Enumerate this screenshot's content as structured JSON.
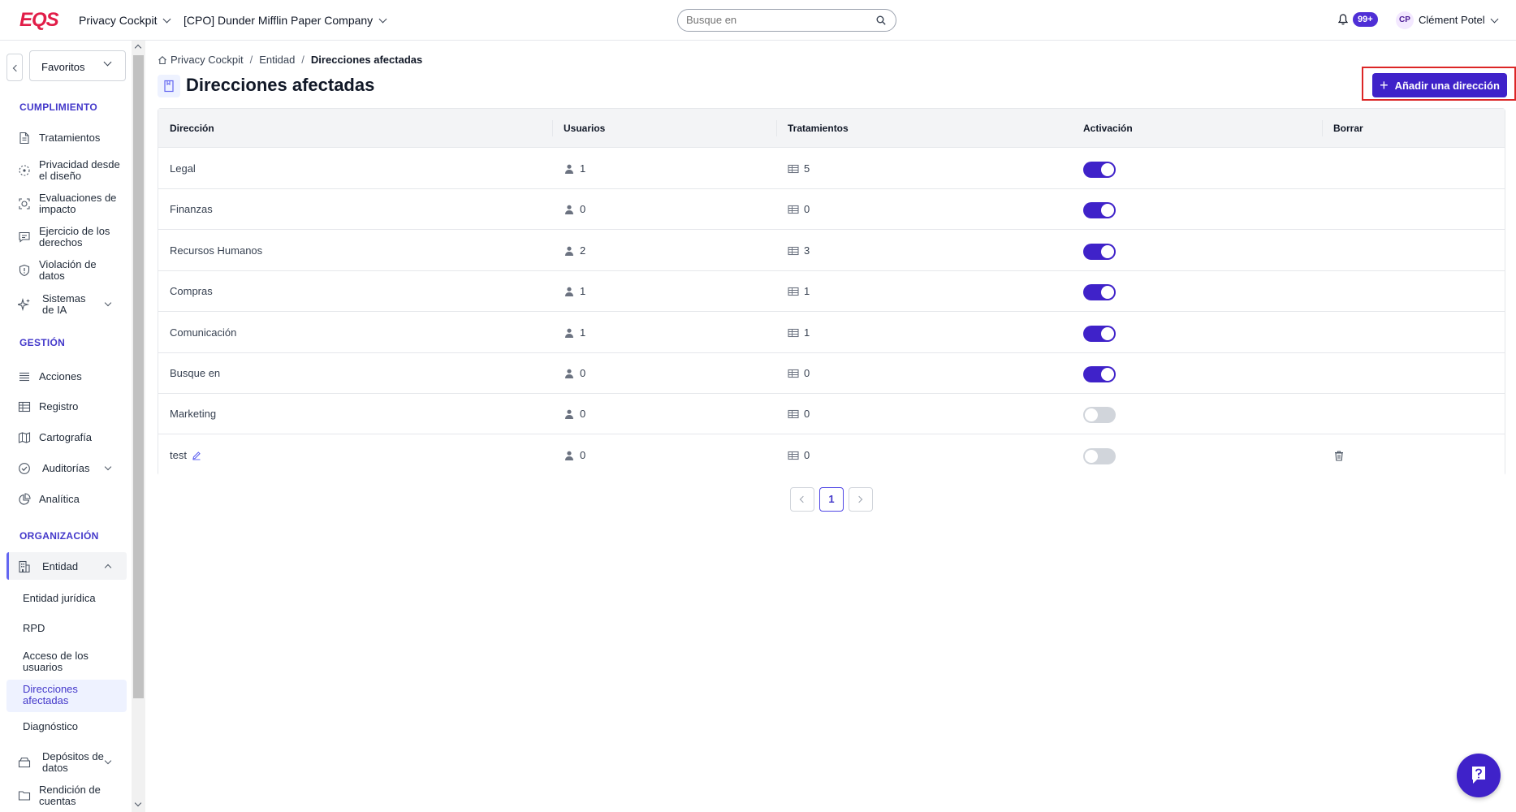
{
  "brand": {
    "logo": "EQS",
    "accent": "#3f22c9",
    "logo_color": "#e11d48"
  },
  "topbar": {
    "app_selector": "Privacy Cockpit",
    "company_selector": "[CPO] Dunder Mifflin Paper Company",
    "search_placeholder": "Busque en",
    "notifications_badge": "99+",
    "user_initials": "CP",
    "user_name": "Clément Potel"
  },
  "sidebar": {
    "favorites": "Favoritos",
    "sections": {
      "compliance": "CUMPLIMIENTO",
      "management": "GESTIÓN",
      "organization": "ORGANIZACIÓN"
    },
    "compliance_items": [
      "Tratamientos",
      "Privacidad desde el diseño",
      "Evaluaciones de impacto",
      "Ejercicio de los derechos",
      "Violación de datos",
      "Sistemas de IA"
    ],
    "management_items": [
      "Acciones",
      "Registro",
      "Cartografía",
      "Auditorías",
      "Analítica"
    ],
    "organization_items": [
      "Entidad"
    ],
    "entity_subitems": [
      "Entidad jurídica",
      "RPD",
      "Acceso de los usuarios",
      "Direcciones afectadas",
      "Diagnóstico"
    ],
    "bottom_items": [
      "Depósitos de datos",
      "Rendición de cuentas"
    ]
  },
  "breadcrumb": [
    "Privacy Cockpit",
    "Entidad",
    "Direcciones afectadas"
  ],
  "page": {
    "title": "Direcciones afectadas",
    "add_button": "Añadir una dirección"
  },
  "table": {
    "headers": [
      "Dirección",
      "Usuarios",
      "Tratamientos",
      "Activación",
      "Borrar"
    ],
    "rows": [
      {
        "name": "Legal",
        "users": "1",
        "treatments": "5",
        "active": true
      },
      {
        "name": "Finanzas",
        "users": "0",
        "treatments": "0",
        "active": true
      },
      {
        "name": "Recursos Humanos",
        "users": "2",
        "treatments": "3",
        "active": true
      },
      {
        "name": "Compras",
        "users": "1",
        "treatments": "1",
        "active": true
      },
      {
        "name": "Comunicación",
        "users": "1",
        "treatments": "1",
        "active": true
      },
      {
        "name": "Busque en",
        "users": "0",
        "treatments": "0",
        "active": true
      },
      {
        "name": "Marketing",
        "users": "0",
        "treatments": "0",
        "active": false
      },
      {
        "name": "test",
        "users": "0",
        "treatments": "0",
        "active": false
      }
    ]
  },
  "pagination": {
    "current_page": "1"
  }
}
